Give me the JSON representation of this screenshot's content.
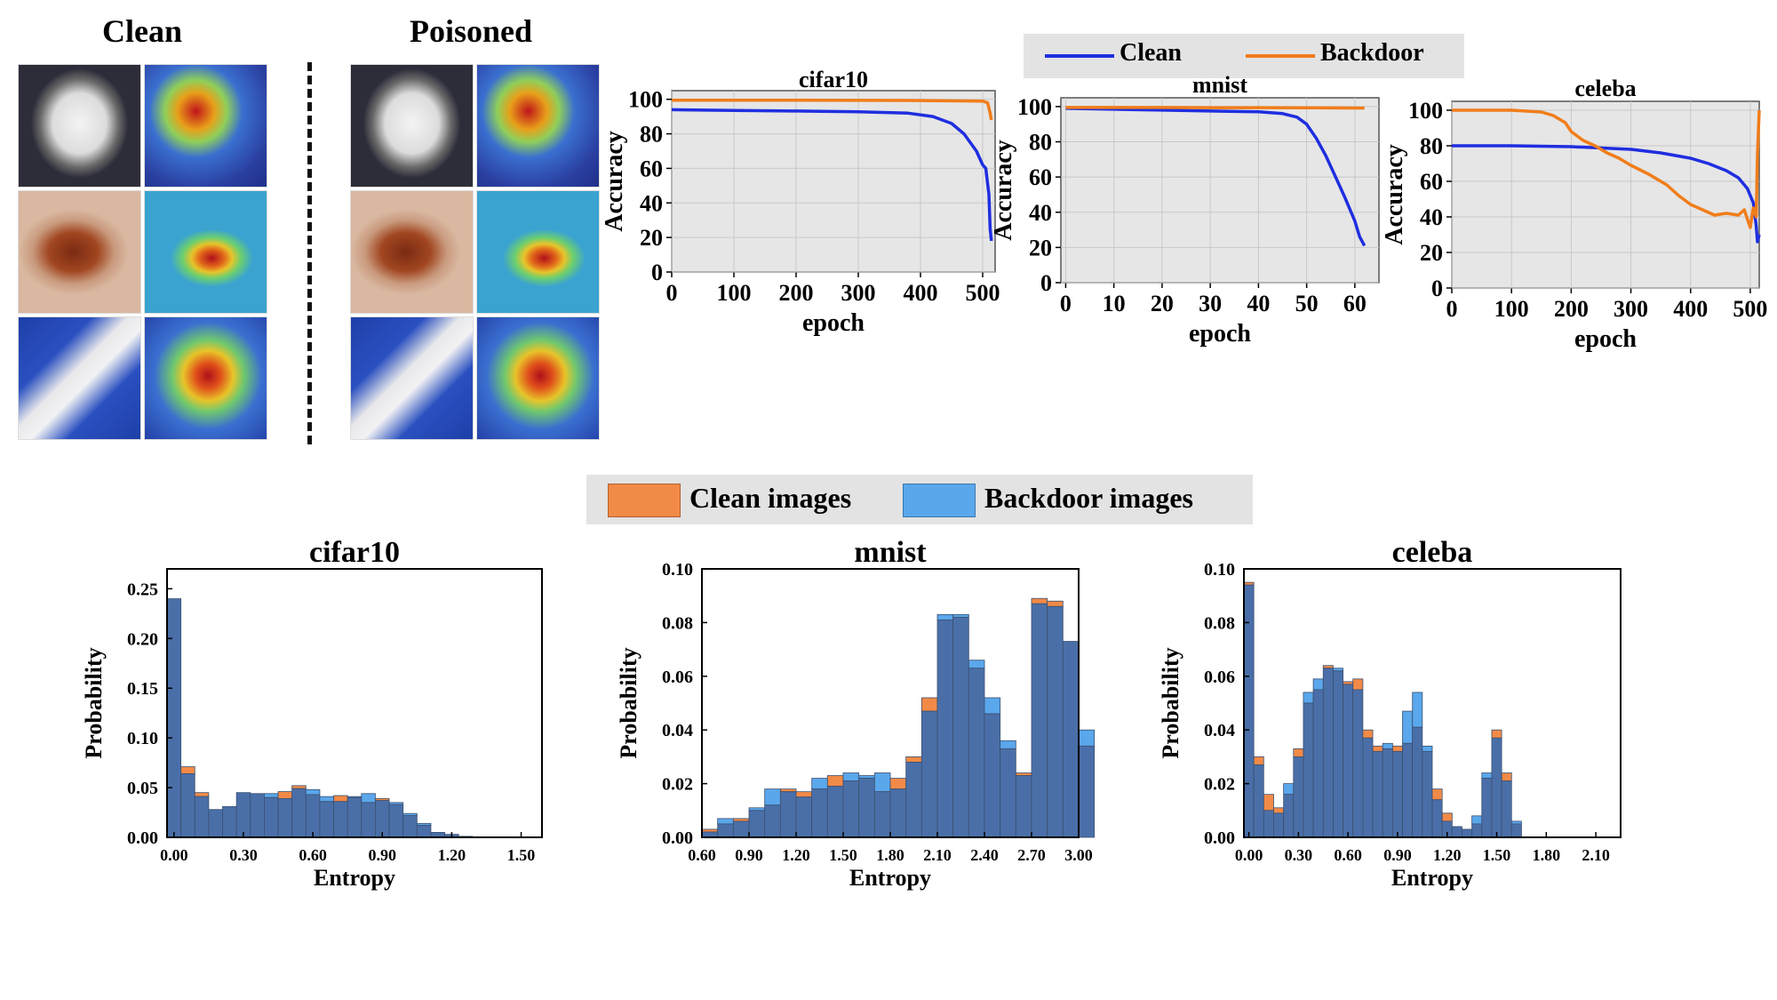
{
  "images_panel": {
    "clean_label": "Clean",
    "poisoned_label": "Poisoned"
  },
  "top_legend": {
    "items": [
      {
        "label": "Clean",
        "color": "#1f2ee0"
      },
      {
        "label": "Backdoor",
        "color": "#f07d1a"
      }
    ]
  },
  "bottom_legend": {
    "items": [
      {
        "label": "Clean images",
        "color": "#f28a47"
      },
      {
        "label": "Backdoor images",
        "color": "#5aa7ec"
      }
    ]
  },
  "colors": {
    "clean_line": "#1f2ee0",
    "backdoor_line": "#f07d1a",
    "clean_hist": "#f28a47",
    "backdoor_hist": "#5aa7ec",
    "overlap_hist": "#4a6fa8",
    "plot_bg": "#e6e6e6"
  },
  "chart_data": [
    {
      "type": "line",
      "title": "cifar10",
      "xlabel": "epoch",
      "ylabel": "Accuracy",
      "xlim": [
        0,
        520
      ],
      "ylim": [
        0,
        105
      ],
      "xticks": [
        0,
        100,
        200,
        300,
        400,
        500
      ],
      "xtick_labels": [
        "0",
        "100",
        "200",
        "300",
        "400",
        "500"
      ],
      "yticks": [
        0,
        20,
        40,
        60,
        80,
        100
      ],
      "ytick_labels": [
        "0",
        "20",
        "40",
        "60",
        "80",
        "100"
      ],
      "grid": true,
      "series": [
        {
          "name": "Clean",
          "x": [
            0,
            100,
            200,
            300,
            380,
            420,
            450,
            470,
            490,
            500,
            505,
            510,
            512,
            514
          ],
          "y": [
            94,
            93.5,
            93.2,
            92.8,
            92,
            90,
            86,
            80,
            70,
            62,
            60,
            45,
            25,
            18
          ]
        },
        {
          "name": "Backdoor",
          "x": [
            0,
            100,
            200,
            300,
            400,
            500,
            508,
            512,
            514
          ],
          "y": [
            99.5,
            99.5,
            99.5,
            99.4,
            99.3,
            99,
            98,
            92,
            88
          ]
        }
      ]
    },
    {
      "type": "line",
      "title": "mnist",
      "xlabel": "epoch",
      "ylabel": "Accuracy",
      "xlim": [
        -1,
        65
      ],
      "ylim": [
        0,
        105
      ],
      "xticks": [
        0,
        10,
        20,
        30,
        40,
        50,
        60
      ],
      "xtick_labels": [
        "0",
        "10",
        "20",
        "30",
        "40",
        "50",
        "60"
      ],
      "yticks": [
        0,
        20,
        40,
        60,
        80,
        100
      ],
      "ytick_labels": [
        "0",
        "20",
        "40",
        "60",
        "80",
        "100"
      ],
      "grid": true,
      "series": [
        {
          "name": "Clean",
          "x": [
            0,
            10,
            20,
            30,
            40,
            45,
            48,
            50,
            52,
            54,
            56,
            58,
            60,
            61,
            62
          ],
          "y": [
            99,
            98.5,
            98,
            97.5,
            97,
            96,
            94,
            90,
            82,
            72,
            60,
            48,
            35,
            26,
            21
          ]
        },
        {
          "name": "Backdoor",
          "x": [
            0,
            10,
            20,
            30,
            40,
            50,
            60,
            62
          ],
          "y": [
            99.5,
            99.5,
            99.5,
            99.4,
            99.4,
            99.3,
            99.2,
            99.2
          ]
        }
      ]
    },
    {
      "type": "line",
      "title": "celeba",
      "xlabel": "epoch",
      "ylabel": "Accuracy",
      "xlim": [
        0,
        515
      ],
      "ylim": [
        0,
        105
      ],
      "xticks": [
        0,
        100,
        200,
        300,
        400,
        500
      ],
      "xtick_labels": [
        "0",
        "100",
        "200",
        "300",
        "400",
        "500"
      ],
      "yticks": [
        0,
        20,
        40,
        60,
        80,
        100
      ],
      "ytick_labels": [
        "0",
        "20",
        "40",
        "60",
        "80",
        "100"
      ],
      "grid": true,
      "series": [
        {
          "name": "Clean",
          "x": [
            0,
            100,
            200,
            300,
            350,
            400,
            430,
            460,
            480,
            495,
            505,
            510,
            512,
            515
          ],
          "y": [
            80,
            80,
            79.5,
            78,
            76,
            73,
            70,
            66,
            62,
            56,
            48,
            35,
            26,
            30
          ]
        },
        {
          "name": "Backdoor",
          "x": [
            0,
            100,
            150,
            170,
            190,
            200,
            220,
            240,
            260,
            280,
            300,
            330,
            360,
            380,
            400,
            420,
            440,
            460,
            480,
            490,
            500,
            505,
            510,
            512,
            515
          ],
          "y": [
            100,
            100,
            99,
            97,
            93,
            88,
            83,
            80,
            76,
            73,
            69,
            64,
            58,
            52,
            47,
            44,
            41,
            42,
            41,
            44,
            34,
            45,
            40,
            75,
            100
          ]
        }
      ]
    },
    {
      "type": "bar",
      "title": "cifar10",
      "xlabel": "Entropy",
      "ylabel": "Probability",
      "bin_start": -0.03,
      "bin_width": 0.06,
      "xlim": [
        -0.03,
        1.59
      ],
      "ylim": [
        0,
        0.27
      ],
      "xticks": [
        0.0,
        0.3,
        0.6,
        0.9,
        1.2,
        1.5
      ],
      "xtick_labels": [
        "0.00",
        "0.30",
        "0.60",
        "0.90",
        "1.20",
        "1.50"
      ],
      "yticks": [
        0,
        0.05,
        0.1,
        0.15,
        0.2,
        0.25
      ],
      "ytick_labels": [
        "0.00",
        "0.05",
        "0.10",
        "0.15",
        "0.20",
        "0.25"
      ],
      "series": [
        {
          "name": "Clean images",
          "values": [
            0.24,
            0.071,
            0.045,
            0.028,
            0.031,
            0.045,
            0.044,
            0.04,
            0.046,
            0.052,
            0.043,
            0.036,
            0.042,
            0.04,
            0.035,
            0.039,
            0.033,
            0.022,
            0.012,
            0.005,
            0.003,
            0.001
          ]
        },
        {
          "name": "Backdoor images",
          "values": [
            0.24,
            0.064,
            0.041,
            0.028,
            0.031,
            0.045,
            0.044,
            0.044,
            0.039,
            0.049,
            0.048,
            0.041,
            0.036,
            0.041,
            0.044,
            0.037,
            0.035,
            0.024,
            0.014,
            0.005,
            0.003,
            0.001
          ]
        }
      ]
    },
    {
      "type": "bar",
      "title": "mnist",
      "xlabel": "Entropy",
      "ylabel": "Probability",
      "bin_start": 0.6,
      "bin_width": 0.1,
      "xlim": [
        0.6,
        3.0
      ],
      "ylim": [
        0,
        0.1
      ],
      "xticks": [
        0.6,
        0.9,
        1.2,
        1.5,
        1.8,
        2.1,
        2.4,
        2.7,
        3.0
      ],
      "xtick_labels": [
        "0.60",
        "0.90",
        "1.20",
        "1.50",
        "1.80",
        "2.10",
        "2.40",
        "2.70",
        "3.00"
      ],
      "yticks": [
        0,
        0.02,
        0.04,
        0.06,
        0.08,
        0.1
      ],
      "ytick_labels": [
        "0.00",
        "0.02",
        "0.04",
        "0.06",
        "0.08",
        "0.10"
      ],
      "series": [
        {
          "name": "Clean images",
          "values": [
            0.003,
            0.005,
            0.007,
            0.01,
            0.012,
            0.018,
            0.017,
            0.018,
            0.023,
            0.021,
            0.022,
            0.017,
            0.022,
            0.03,
            0.052,
            0.081,
            0.082,
            0.063,
            0.046,
            0.033,
            0.024,
            0.089,
            0.088,
            0.073,
            0.034
          ]
        },
        {
          "name": "Backdoor images",
          "values": [
            0.002,
            0.007,
            0.006,
            0.011,
            0.018,
            0.017,
            0.015,
            0.022,
            0.019,
            0.024,
            0.023,
            0.024,
            0.018,
            0.028,
            0.047,
            0.083,
            0.083,
            0.066,
            0.052,
            0.036,
            0.023,
            0.087,
            0.086,
            0.073,
            0.04
          ]
        }
      ]
    },
    {
      "type": "bar",
      "title": "celeba",
      "xlabel": "Entropy",
      "ylabel": "Probability",
      "bin_start": -0.03,
      "bin_width": 0.06,
      "xlim": [
        -0.03,
        2.25
      ],
      "ylim": [
        0,
        0.1
      ],
      "xticks": [
        0.0,
        0.3,
        0.6,
        0.9,
        1.2,
        1.5,
        1.8,
        2.1
      ],
      "xtick_labels": [
        "0.00",
        "0.30",
        "0.60",
        "0.90",
        "1.20",
        "1.50",
        "1.80",
        "2.10"
      ],
      "yticks": [
        0,
        0.02,
        0.04,
        0.06,
        0.08,
        0.1
      ],
      "ytick_labels": [
        "0.00",
        "0.02",
        "0.04",
        "0.06",
        "0.08",
        "0.10"
      ],
      "series": [
        {
          "name": "Clean images",
          "values": [
            0.095,
            0.03,
            0.016,
            0.011,
            0.016,
            0.033,
            0.05,
            0.055,
            0.064,
            0.062,
            0.058,
            0.059,
            0.04,
            0.034,
            0.033,
            0.034,
            0.035,
            0.041,
            0.032,
            0.018,
            0.009,
            0.004,
            0.003,
            0.005,
            0.022,
            0.04,
            0.024,
            0.005
          ]
        },
        {
          "name": "Backdoor images",
          "values": [
            0.094,
            0.027,
            0.01,
            0.009,
            0.02,
            0.03,
            0.054,
            0.059,
            0.063,
            0.063,
            0.057,
            0.055,
            0.037,
            0.032,
            0.035,
            0.032,
            0.047,
            0.054,
            0.034,
            0.014,
            0.006,
            0.004,
            0.003,
            0.008,
            0.024,
            0.037,
            0.021,
            0.006
          ]
        }
      ]
    }
  ]
}
